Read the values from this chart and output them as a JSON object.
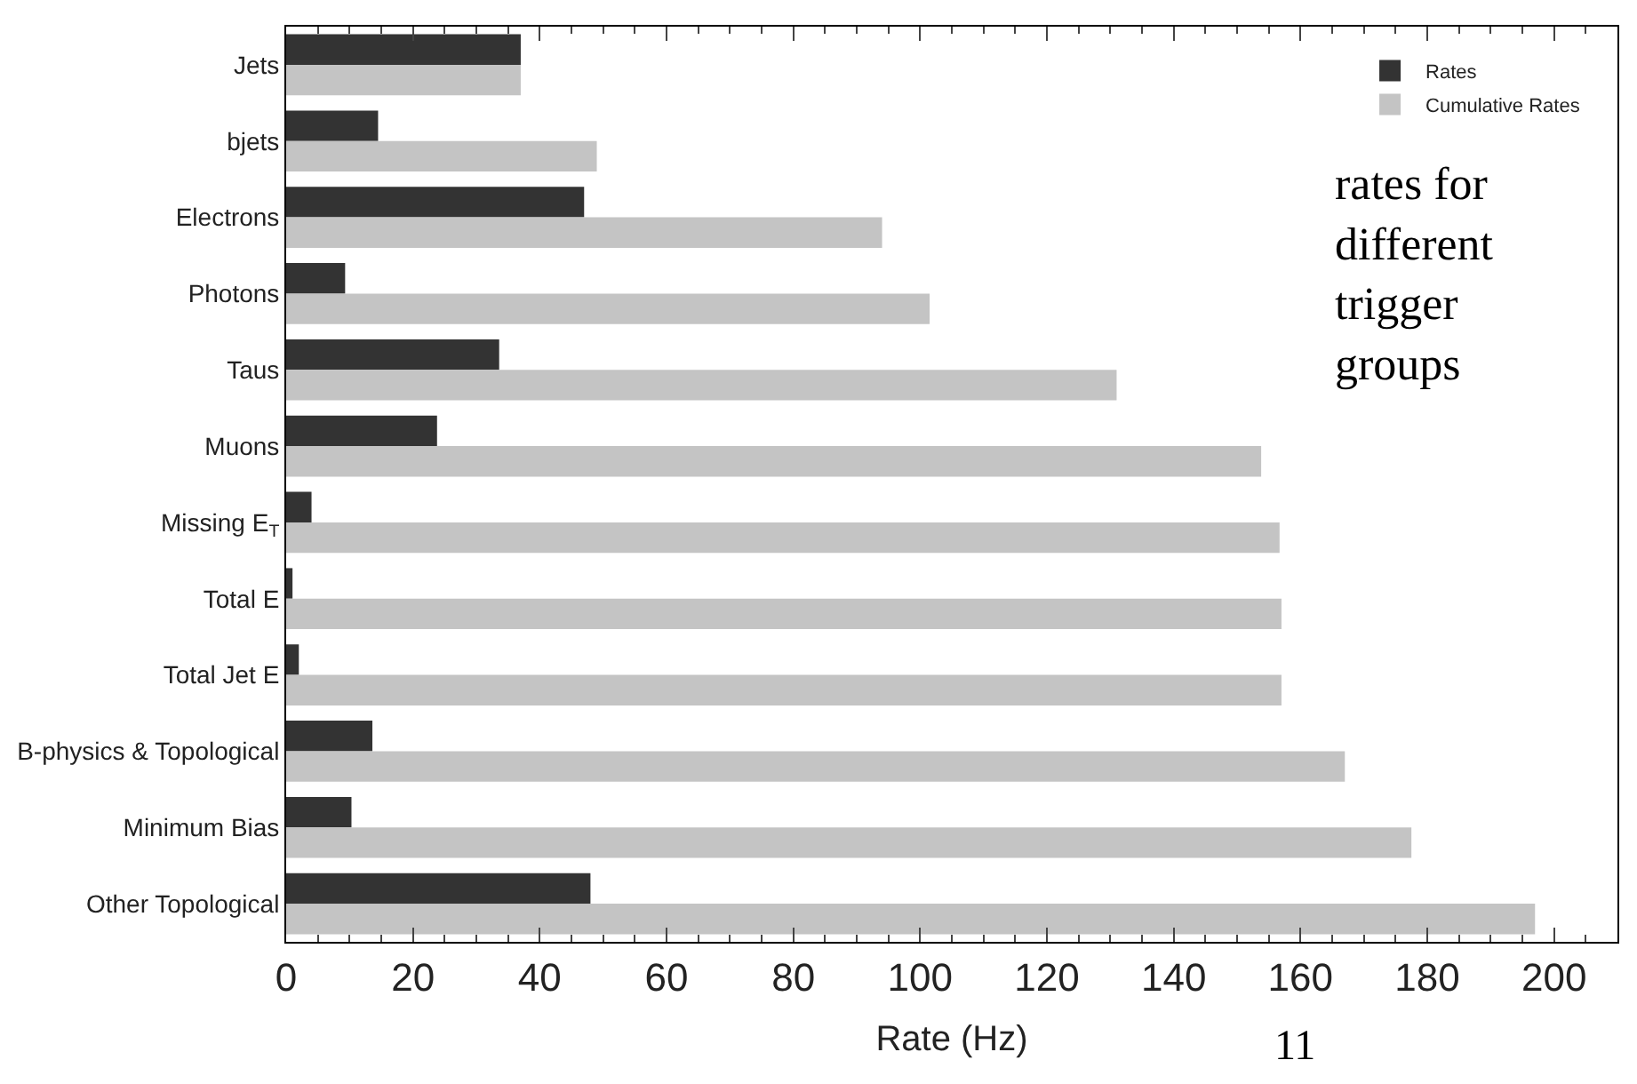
{
  "chart_data": {
    "type": "bar",
    "orientation": "horizontal",
    "categories": [
      "Jets",
      "bjets",
      "Electrons",
      "Photons",
      "Taus",
      "Muons",
      "Missing E$_{T}$",
      "Total E",
      "Total Jet E",
      "B-physics & Topological",
      "Minimum Bias",
      "Other Topological"
    ],
    "series": [
      {
        "name": "Rates",
        "color": "#333333",
        "values": [
          37,
          14.5,
          47,
          9.3,
          33.6,
          23.8,
          4,
          1,
          2,
          13.6,
          10.3,
          48
        ]
      },
      {
        "name": "Cumulative Rates",
        "color": "#c4c4c4",
        "values": [
          37,
          49,
          94,
          101.5,
          131,
          153.8,
          156.7,
          157,
          157,
          167,
          177.5,
          197
        ]
      }
    ],
    "xlabel": "Rate (Hz)",
    "xlim": [
      0,
      210
    ],
    "xticks": [
      0,
      20,
      40,
      60,
      80,
      100,
      120,
      140,
      160,
      180,
      200
    ],
    "legend": "top right",
    "annotations": [
      "rates for different trigger groups",
      "11"
    ]
  }
}
